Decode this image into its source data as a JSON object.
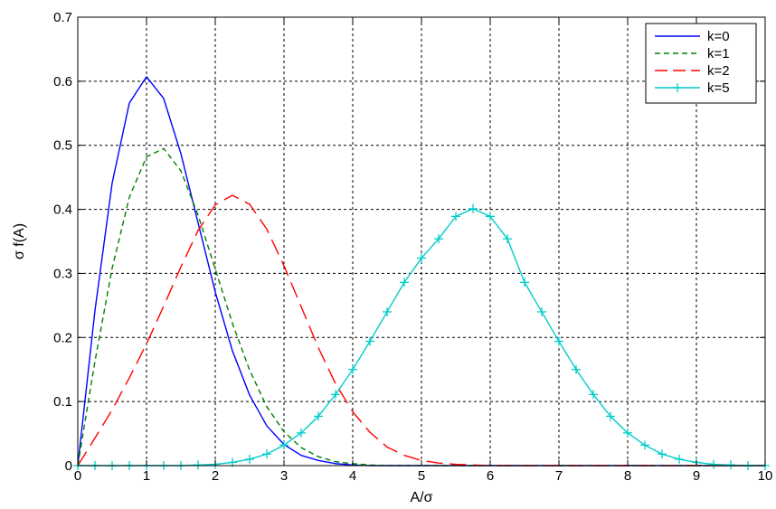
{
  "chart_data": {
    "type": "line",
    "xlabel": "A/σ",
    "ylabel": "σ f(A)",
    "xlim": [
      0,
      10
    ],
    "ylim": [
      0,
      0.7
    ],
    "xticks": [
      0,
      1,
      2,
      3,
      4,
      5,
      6,
      7,
      8,
      9,
      10
    ],
    "yticks": [
      0,
      0.1,
      0.2,
      0.3,
      0.4,
      0.5,
      0.6,
      0.7
    ],
    "xtick_labels": [
      "0",
      "1",
      "2",
      "3",
      "4",
      "5",
      "6",
      "7",
      "8",
      "9",
      "10"
    ],
    "ytick_labels": [
      "0",
      "0.1",
      "0.2",
      "0.3",
      "0.4",
      "0.5",
      "0.6",
      "0.7"
    ],
    "grid": true,
    "legend_position": "top-right",
    "x": [
      0,
      0.25,
      0.5,
      0.75,
      1,
      1.25,
      1.5,
      1.75,
      2,
      2.25,
      2.5,
      2.75,
      3,
      3.25,
      3.5,
      3.75,
      4,
      4.25,
      4.5,
      4.75,
      5,
      5.25,
      5.5,
      5.75,
      6,
      6.25,
      6.5,
      6.75,
      7,
      7.25,
      7.5,
      7.75,
      8,
      8.25,
      8.5,
      8.75,
      9,
      9.25,
      9.5,
      9.75,
      10
    ],
    "series": [
      {
        "name": "k=0",
        "color": "#0000ff",
        "dash": "solid",
        "marker": "none",
        "values": [
          0,
          0.242,
          0.441,
          0.566,
          0.607,
          0.573,
          0.487,
          0.379,
          0.271,
          0.179,
          0.11,
          0.062,
          0.033,
          0.016,
          0.008,
          0.003,
          0.001,
          0,
          0,
          0,
          0,
          0,
          0,
          0,
          0,
          0,
          0,
          0,
          0,
          0,
          0,
          0,
          0,
          0,
          0,
          0,
          0,
          0,
          0,
          0,
          0
        ]
      },
      {
        "name": "k=1",
        "color": "#008000",
        "dash": "6,4",
        "marker": "none",
        "values": [
          0,
          0.163,
          0.308,
          0.419,
          0.482,
          0.495,
          0.46,
          0.391,
          0.307,
          0.222,
          0.149,
          0.092,
          0.053,
          0.028,
          0.014,
          0.006,
          0.003,
          0.001,
          0,
          0,
          0,
          0,
          0,
          0,
          0,
          0,
          0,
          0,
          0,
          0,
          0,
          0,
          0,
          0,
          0,
          0,
          0,
          0,
          0,
          0,
          0
        ]
      },
      {
        "name": "k=2",
        "color": "#ff0000",
        "dash": "18,8",
        "marker": "none",
        "values": [
          0,
          0.043,
          0.087,
          0.137,
          0.19,
          0.249,
          0.31,
          0.367,
          0.407,
          0.422,
          0.408,
          0.369,
          0.312,
          0.248,
          0.184,
          0.128,
          0.084,
          0.052,
          0.029,
          0.016,
          0.008,
          0.004,
          0.002,
          0.001,
          0,
          0,
          0,
          0,
          0,
          0,
          0,
          0,
          0,
          0,
          0,
          0,
          0,
          0,
          0,
          0,
          0
        ]
      },
      {
        "name": "k=5",
        "color": "#00cccc",
        "dash": "solid",
        "marker": "plus",
        "values": [
          0,
          0,
          0,
          0,
          0,
          0,
          0,
          0.001,
          0.002,
          0.005,
          0.01,
          0.018,
          0.032,
          0.051,
          0.077,
          0.111,
          0.15,
          0.194,
          0.24,
          0.286,
          0.324,
          0.354,
          0.389,
          0.401,
          0.389,
          0.354,
          0.286,
          0.24,
          0.194,
          0.15,
          0.111,
          0.077,
          0.051,
          0.032,
          0.018,
          0.01,
          0.005,
          0.002,
          0.001,
          0,
          0
        ]
      }
    ]
  }
}
